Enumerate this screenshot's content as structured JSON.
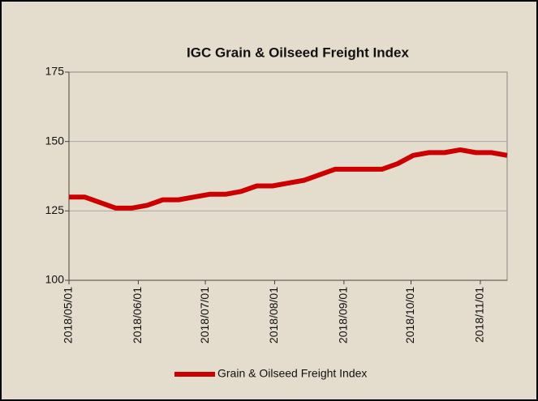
{
  "chart_data": {
    "type": "line",
    "title": "IGC Grain & Oilseed Freight Index",
    "x": [
      "2018/05/01",
      "2018/05/08",
      "2018/05/15",
      "2018/05/22",
      "2018/05/29",
      "2018/06/05",
      "2018/06/12",
      "2018/06/19",
      "2018/06/26",
      "2018/07/03",
      "2018/07/10",
      "2018/07/17",
      "2018/07/24",
      "2018/07/31",
      "2018/08/07",
      "2018/08/14",
      "2018/08/21",
      "2018/08/28",
      "2018/09/04",
      "2018/09/11",
      "2018/09/18",
      "2018/09/25",
      "2018/10/02",
      "2018/10/09",
      "2018/10/16",
      "2018/10/23",
      "2018/10/30",
      "2018/11/06",
      "2018/11/13"
    ],
    "series": [
      {
        "name": "Grain & Oilseed Freight Index",
        "color": "#cc0000",
        "values": [
          130,
          130,
          128,
          126,
          126,
          127,
          129,
          129,
          130,
          131,
          131,
          132,
          134,
          134,
          135,
          136,
          138,
          140,
          140,
          140,
          140,
          142,
          145,
          146,
          146,
          147,
          146,
          146,
          145
        ]
      }
    ],
    "xlim": [
      "2018/05/01",
      "2018/11/13"
    ],
    "xticks": [
      "2018/05/01",
      "2018/06/01",
      "2018/07/01",
      "2018/08/01",
      "2018/09/01",
      "2018/10/01",
      "2018/11/01"
    ],
    "ylim": [
      100,
      175
    ],
    "yticks": [
      100,
      125,
      150,
      175
    ],
    "grid": true,
    "legend": "bottom"
  }
}
